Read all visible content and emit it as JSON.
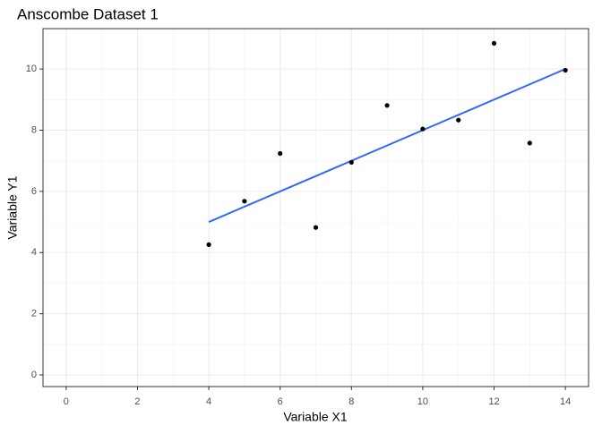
{
  "chart_data": {
    "type": "scatter",
    "title": "Anscombe Dataset 1",
    "x_label": "Variable X1",
    "y_label": "Variable Y1",
    "series": [
      {
        "name": "points",
        "color": "#000000",
        "x": [
          10,
          8,
          13,
          9,
          11,
          14,
          6,
          4,
          12,
          7,
          5
        ],
        "values": [
          8.04,
          6.95,
          7.58,
          8.81,
          8.33,
          9.96,
          7.24,
          4.26,
          10.84,
          4.82,
          5.68
        ]
      }
    ],
    "fit": {
      "color": "#3366FF",
      "x": [
        4,
        14
      ],
      "values": [
        5.0,
        10.0
      ]
    },
    "xlim": [
      -0.65,
      14.65
    ],
    "xticks": [
      0,
      2,
      4,
      6,
      8,
      10,
      12,
      14
    ],
    "ylim": [
      -0.38,
      11.32
    ],
    "yticks": [
      0,
      2,
      4,
      6,
      8,
      10
    ],
    "grid": true
  }
}
